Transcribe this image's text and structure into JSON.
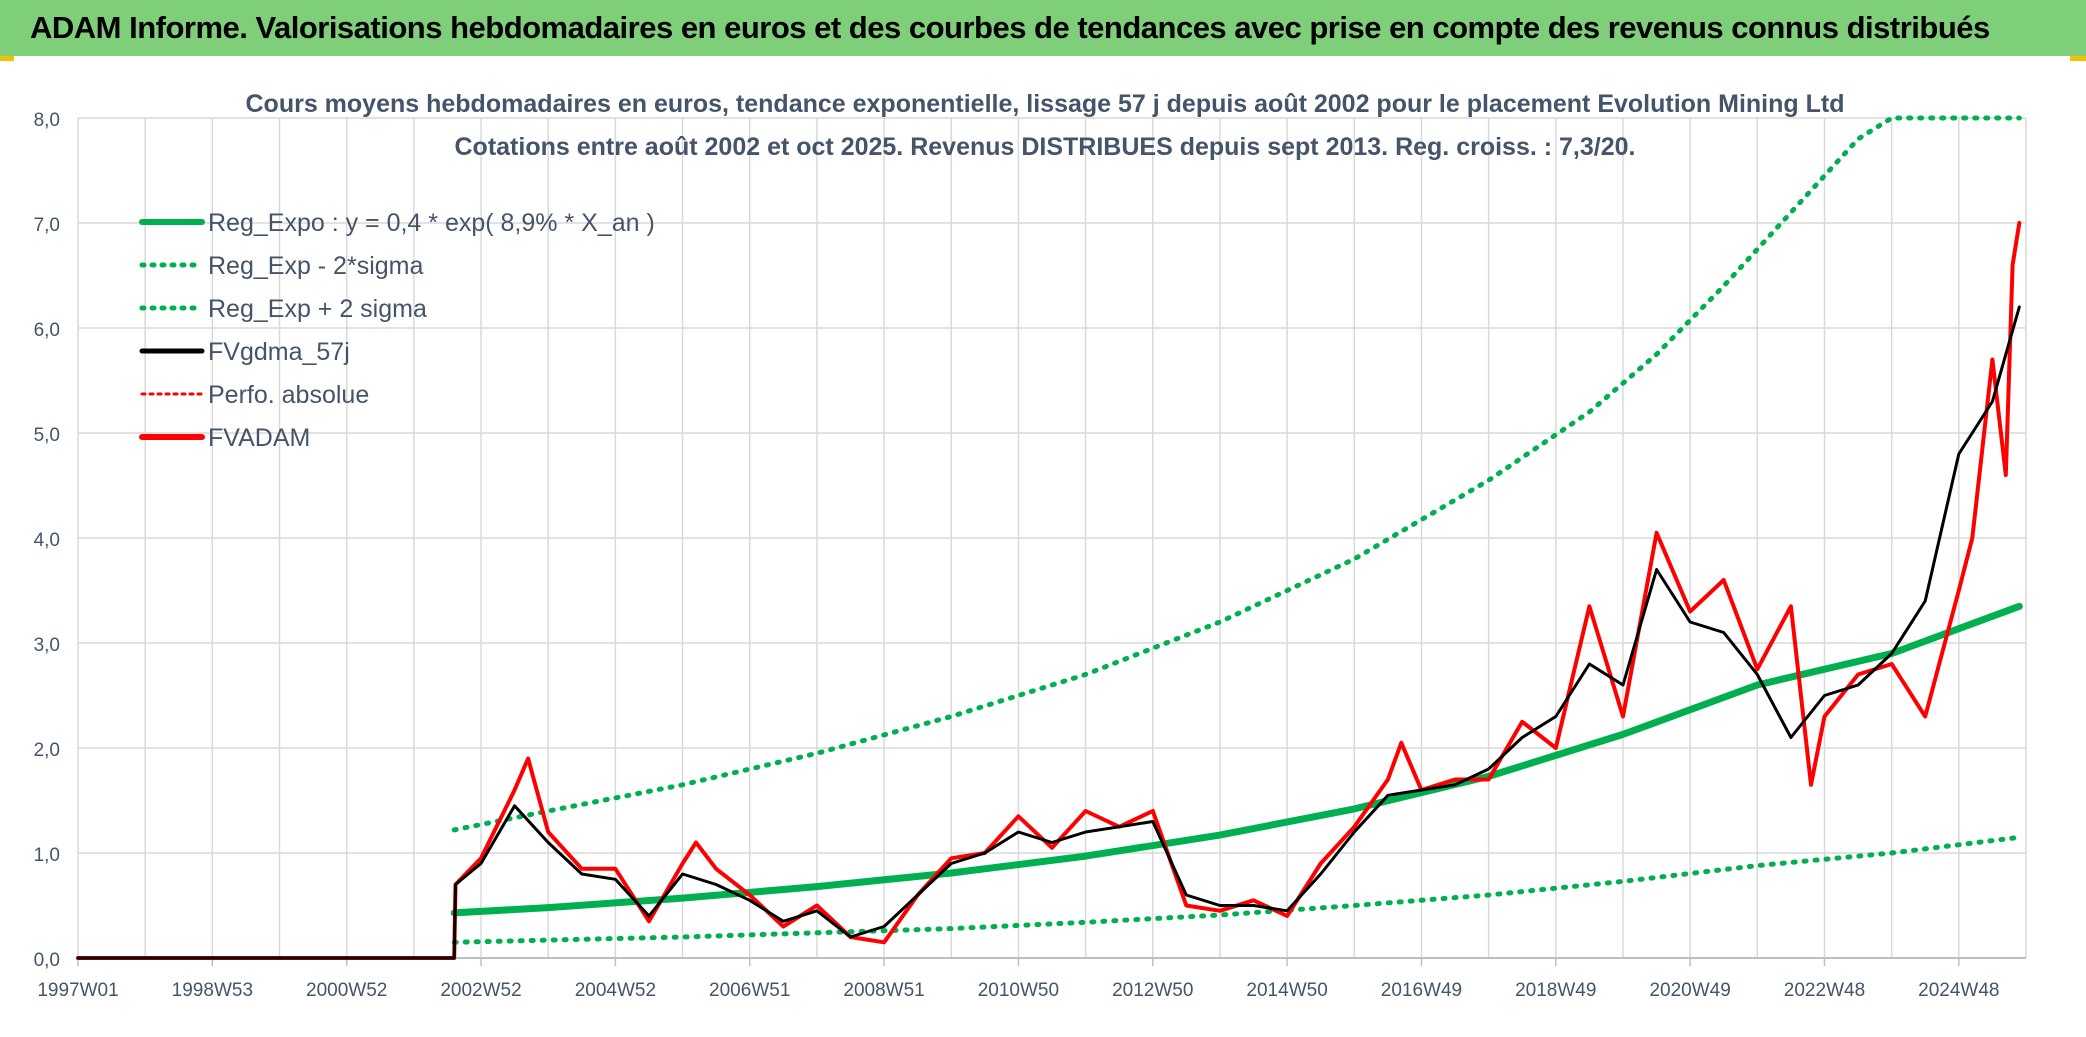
{
  "header": {
    "title": "ADAM Informe. Valorisations hebdomadaires en euros et des courbes de tendances avec prise en compte des revenus connus distribués"
  },
  "colors": {
    "header_bg": "#7fcf7a",
    "reg": "#00b050",
    "fvgdma": "#000000",
    "fvadam": "#ff0000",
    "grid": "#d9d9d9",
    "text": "#44546a"
  },
  "chart_data": {
    "type": "line",
    "title": "Cours moyens hebdomadaires en euros, tendance exponentielle, lissage 57 j depuis août 2002 pour le placement Evolution Mining Ltd",
    "subtitle": "Cotations entre août 2002 et oct 2025. Revenus DISTRIBUES depuis sept 2013. Reg. croiss. : 7,3/20.",
    "xlabel": "",
    "ylabel": "",
    "xlim": [
      1997.0,
      2026.0
    ],
    "ylim": [
      0,
      8
    ],
    "y_ticks": [
      "0,0",
      "1,0",
      "2,0",
      "3,0",
      "4,0",
      "5,0",
      "6,0",
      "7,0",
      "8,0"
    ],
    "x_ticks": [
      {
        "label": "1997W01",
        "x": 1997.0
      },
      {
        "label": "1998W53",
        "x": 1999.0
      },
      {
        "label": "2000W52",
        "x": 2001.0
      },
      {
        "label": "2002W52",
        "x": 2003.0
      },
      {
        "label": "2004W52",
        "x": 2005.0
      },
      {
        "label": "2006W51",
        "x": 2007.0
      },
      {
        "label": "2008W51",
        "x": 2009.0
      },
      {
        "label": "2010W50",
        "x": 2011.0
      },
      {
        "label": "2012W50",
        "x": 2013.0
      },
      {
        "label": "2014W50",
        "x": 2015.0
      },
      {
        "label": "2016W49",
        "x": 2017.0
      },
      {
        "label": "2018W49",
        "x": 2019.0
      },
      {
        "label": "2020W49",
        "x": 2021.0
      },
      {
        "label": "2022W48",
        "x": 2023.0
      },
      {
        "label": "2024W48",
        "x": 2025.0
      }
    ],
    "legend": [
      {
        "key": "reg",
        "label": "Reg_Expo : y = 0,4 * exp( 8,9% *  X_an )",
        "style": "solid-green"
      },
      {
        "key": "lower",
        "label": "Reg_Exp - 2*sigma",
        "style": "dotted-green"
      },
      {
        "key": "upper",
        "label": "Reg_Exp + 2 sigma",
        "style": "dotted-green"
      },
      {
        "key": "fvgdma",
        "label": "FVgdma_57j",
        "style": "solid-black"
      },
      {
        "key": "perfo",
        "label": "Perfo. absolue",
        "style": "dotted-red"
      },
      {
        "key": "fvadam",
        "label": "FVADAM",
        "style": "solid-red"
      }
    ],
    "legend_position": "top-left",
    "series": [
      {
        "name": "Reg_Expo",
        "x": [
          2002.6,
          2004.0,
          2006.0,
          2008.0,
          2010.0,
          2012.0,
          2014.0,
          2016.0,
          2018.0,
          2020.0,
          2022.0,
          2024.0,
          2025.9
        ],
        "y": [
          0.43,
          0.48,
          0.57,
          0.68,
          0.81,
          0.97,
          1.17,
          1.42,
          1.73,
          2.13,
          2.6,
          2.9,
          3.35
        ]
      },
      {
        "name": "Reg_Exp - 2*sigma",
        "x": [
          2002.6,
          2004.0,
          2006.0,
          2008.0,
          2010.0,
          2012.0,
          2014.0,
          2016.0,
          2018.0,
          2020.0,
          2022.0,
          2024.0,
          2025.9
        ],
        "y": [
          0.15,
          0.17,
          0.2,
          0.24,
          0.28,
          0.34,
          0.41,
          0.5,
          0.6,
          0.73,
          0.88,
          1.0,
          1.15
        ]
      },
      {
        "name": "Reg_Exp + 2 sigma",
        "x": [
          2002.6,
          2004.0,
          2006.0,
          2008.0,
          2010.0,
          2012.0,
          2014.0,
          2016.0,
          2018.0,
          2019.5,
          2020.5,
          2021.5,
          2022.5,
          2023.5,
          2024.0,
          2025.9
        ],
        "y": [
          1.22,
          1.4,
          1.65,
          1.95,
          2.3,
          2.7,
          3.2,
          3.8,
          4.55,
          5.2,
          5.75,
          6.4,
          7.1,
          7.8,
          8.0,
          8.0
        ]
      },
      {
        "name": "FVgdma_57j",
        "x": [
          1997.0,
          2002.6,
          2002.62,
          2003.0,
          2003.5,
          2004.0,
          2004.5,
          2005.0,
          2005.5,
          2006.0,
          2006.5,
          2007.0,
          2007.5,
          2008.0,
          2008.5,
          2009.0,
          2009.5,
          2010.0,
          2010.5,
          2011.0,
          2011.5,
          2012.0,
          2012.5,
          2013.0,
          2013.5,
          2014.0,
          2014.5,
          2015.0,
          2015.5,
          2016.0,
          2016.5,
          2017.0,
          2017.5,
          2018.0,
          2018.5,
          2019.0,
          2019.5,
          2020.0,
          2020.5,
          2021.0,
          2021.5,
          2022.0,
          2022.5,
          2023.0,
          2023.5,
          2024.0,
          2024.5,
          2025.0,
          2025.5,
          2025.9
        ],
        "y": [
          0.0,
          0.0,
          0.7,
          0.9,
          1.45,
          1.1,
          0.8,
          0.75,
          0.4,
          0.8,
          0.7,
          0.55,
          0.35,
          0.45,
          0.2,
          0.3,
          0.6,
          0.9,
          1.0,
          1.2,
          1.1,
          1.2,
          1.25,
          1.3,
          0.6,
          0.5,
          0.5,
          0.45,
          0.8,
          1.2,
          1.55,
          1.6,
          1.65,
          1.8,
          2.1,
          2.3,
          2.8,
          2.6,
          3.7,
          3.2,
          3.1,
          2.7,
          2.1,
          2.5,
          2.6,
          2.9,
          3.4,
          4.8,
          5.3,
          6.2
        ]
      },
      {
        "name": "FVADAM",
        "x": [
          1997.0,
          2002.6,
          2002.62,
          2003.0,
          2003.5,
          2003.7,
          2004.0,
          2004.5,
          2005.0,
          2005.5,
          2006.0,
          2006.2,
          2006.5,
          2007.0,
          2007.5,
          2008.0,
          2008.5,
          2009.0,
          2009.5,
          2010.0,
          2010.5,
          2011.0,
          2011.5,
          2012.0,
          2012.5,
          2013.0,
          2013.5,
          2014.0,
          2014.5,
          2015.0,
          2015.5,
          2016.0,
          2016.5,
          2016.7,
          2017.0,
          2017.5,
          2018.0,
          2018.5,
          2019.0,
          2019.5,
          2020.0,
          2020.5,
          2021.0,
          2021.5,
          2022.0,
          2022.5,
          2022.8,
          2023.0,
          2023.5,
          2024.0,
          2024.5,
          2025.0,
          2025.2,
          2025.5,
          2025.7,
          2025.8,
          2025.9
        ],
        "y": [
          0.0,
          0.0,
          0.7,
          0.95,
          1.6,
          1.9,
          1.2,
          0.85,
          0.85,
          0.35,
          0.9,
          1.1,
          0.85,
          0.6,
          0.3,
          0.5,
          0.2,
          0.15,
          0.6,
          0.95,
          1.0,
          1.35,
          1.05,
          1.4,
          1.25,
          1.4,
          0.5,
          0.45,
          0.55,
          0.4,
          0.9,
          1.25,
          1.7,
          2.05,
          1.6,
          1.7,
          1.7,
          2.25,
          2.0,
          3.35,
          2.3,
          4.05,
          3.3,
          3.6,
          2.75,
          3.35,
          1.65,
          2.3,
          2.7,
          2.8,
          2.3,
          3.5,
          4.0,
          5.7,
          4.6,
          6.6,
          7.0
        ]
      }
    ]
  }
}
